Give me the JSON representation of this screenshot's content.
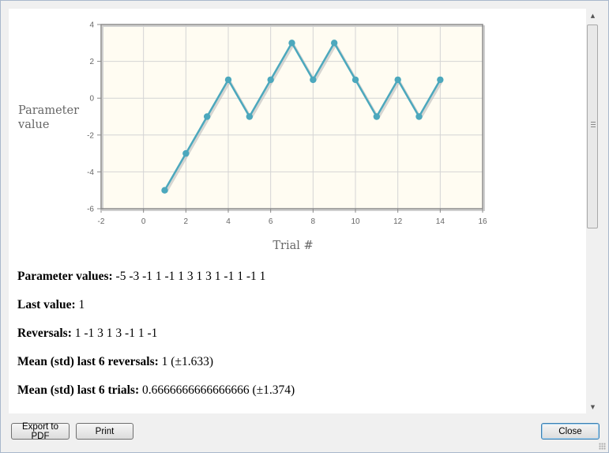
{
  "chart_data": {
    "type": "line",
    "xlabel": "Trial #",
    "ylabel": "Parameter value",
    "xlim": [
      -2,
      16
    ],
    "ylim": [
      -6,
      4
    ],
    "xticks": [
      -2,
      0,
      2,
      4,
      6,
      8,
      10,
      12,
      14,
      16
    ],
    "yticks": [
      -6,
      -4,
      -2,
      0,
      2,
      4
    ],
    "grid": true,
    "series": [
      {
        "x": [
          1,
          2,
          3,
          4,
          5,
          6,
          7,
          8,
          9,
          10,
          11,
          12,
          13,
          14
        ],
        "y": [
          -5,
          -3,
          -1,
          1,
          -1,
          1,
          3,
          1,
          3,
          1,
          -1,
          1,
          -1,
          1
        ],
        "color": "#4ca8bd"
      }
    ],
    "plot_bg": "#fffcf2",
    "frame_color": "#8a8a8a",
    "grid_color": "#d4d4d4"
  },
  "stats": {
    "param_values_label": "Parameter values:",
    "param_values": "-5 -3 -1 1 -1 1 3 1 3 1 -1 1 -1 1",
    "last_value_label": "Last value:",
    "last_value": "1",
    "reversals_label": "Reversals:",
    "reversals": "1 -1 3 1 3 -1 1 -1",
    "mean_rev_label": "Mean (std) last 6 reversals:",
    "mean_rev": "1 (±1.633)",
    "mean_trials_label": "Mean (std) last 6 trials:",
    "mean_trials": "0.6666666666666666 (±1.374)"
  },
  "buttons": {
    "export": "Export to PDF",
    "print": "Print",
    "close": "Close"
  },
  "icons": {
    "scroll_up": "scroll-up-arrow",
    "scroll_down": "scroll-down-arrow"
  }
}
